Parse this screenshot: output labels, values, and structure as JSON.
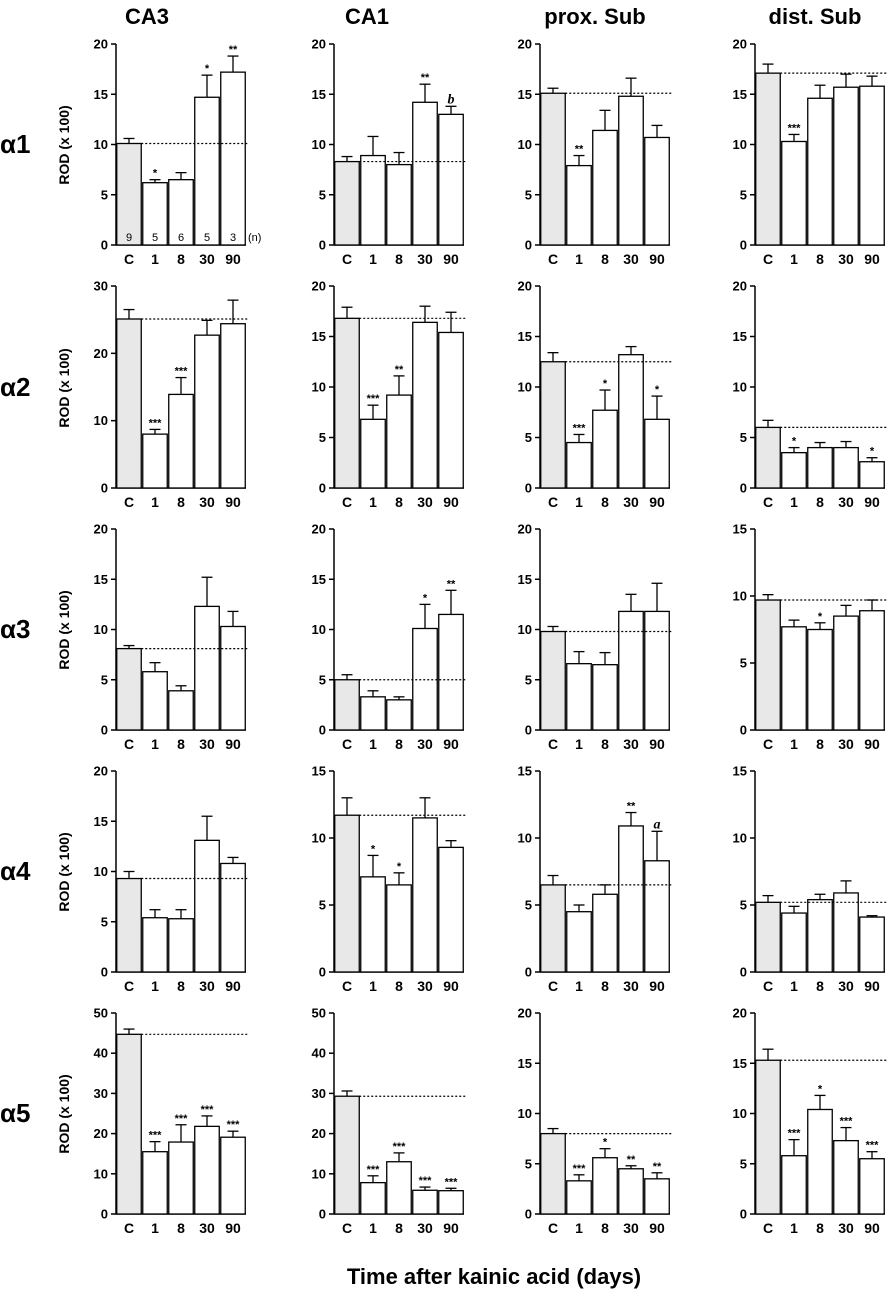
{
  "column_titles": [
    "CA3",
    "CA1",
    "prox. Sub",
    "dist. Sub"
  ],
  "row_titles": [
    "α1",
    "α2",
    "α3",
    "α4",
    "α5"
  ],
  "y_axis_label": "ROD (x 100)",
  "x_axis_label": "Time after kainic acid (days)",
  "n_label": "(n)",
  "colors": {
    "control_fill": "#e8e8e8",
    "treatment_fill": "#ffffff",
    "stroke": "#000000"
  },
  "chart_data": [
    {
      "type": "bar",
      "row": "α1",
      "column": "CA3",
      "categories": [
        "C",
        "1",
        "8",
        "30",
        "90"
      ],
      "values": [
        10.1,
        6.2,
        6.5,
        14.7,
        17.2
      ],
      "errors": [
        0.5,
        0.3,
        0.7,
        2.2,
        1.6
      ],
      "significance": [
        "",
        "*",
        "",
        "*",
        "**"
      ],
      "n": [
        "9",
        "5",
        "6",
        "5",
        "3"
      ],
      "ylim": [
        0,
        20
      ],
      "yticks": [
        0,
        5,
        10,
        15,
        20
      ],
      "baseline": 10.1
    },
    {
      "type": "bar",
      "row": "α1",
      "column": "CA1",
      "categories": [
        "C",
        "1",
        "8",
        "30",
        "90"
      ],
      "values": [
        8.3,
        8.9,
        8.0,
        14.2,
        13.0
      ],
      "errors": [
        0.5,
        1.9,
        1.2,
        1.8,
        0.8
      ],
      "significance": [
        "",
        "",
        "",
        "**",
        "b"
      ],
      "ylim": [
        0,
        20
      ],
      "yticks": [
        0,
        5,
        10,
        15,
        20
      ],
      "baseline": 8.3
    },
    {
      "type": "bar",
      "row": "α1",
      "column": "prox. Sub",
      "categories": [
        "C",
        "1",
        "8",
        "30",
        "90"
      ],
      "values": [
        15.1,
        7.9,
        11.4,
        14.8,
        10.7
      ],
      "errors": [
        0.5,
        1.0,
        2.0,
        1.8,
        1.2
      ],
      "significance": [
        "",
        "**",
        "",
        "",
        ""
      ],
      "ylim": [
        0,
        20
      ],
      "yticks": [
        0,
        5,
        10,
        15,
        20
      ],
      "baseline": 15.1
    },
    {
      "type": "bar",
      "row": "α1",
      "column": "dist. Sub",
      "categories": [
        "C",
        "1",
        "8",
        "30",
        "90"
      ],
      "values": [
        17.1,
        10.3,
        14.6,
        15.7,
        15.8
      ],
      "errors": [
        0.9,
        0.7,
        1.3,
        1.3,
        1.0
      ],
      "significance": [
        "",
        "***",
        "",
        "",
        ""
      ],
      "ylim": [
        0,
        20
      ],
      "yticks": [
        0,
        5,
        10,
        15,
        20
      ],
      "baseline": 17.1
    },
    {
      "type": "bar",
      "row": "α2",
      "column": "CA3",
      "categories": [
        "C",
        "1",
        "8",
        "30",
        "90"
      ],
      "values": [
        25.1,
        8.0,
        13.9,
        22.7,
        24.4
      ],
      "errors": [
        1.4,
        0.7,
        2.5,
        2.2,
        3.5
      ],
      "significance": [
        "",
        "***",
        "***",
        "",
        ""
      ],
      "ylim": [
        0,
        30
      ],
      "yticks": [
        0,
        10,
        20,
        30
      ],
      "baseline": 25.1
    },
    {
      "type": "bar",
      "row": "α2",
      "column": "CA1",
      "categories": [
        "C",
        "1",
        "8",
        "30",
        "90"
      ],
      "values": [
        16.8,
        6.8,
        9.2,
        16.4,
        15.4
      ],
      "errors": [
        1.1,
        1.4,
        1.9,
        1.6,
        2.0
      ],
      "significance": [
        "",
        "***",
        "**",
        "",
        ""
      ],
      "ylim": [
        0,
        20
      ],
      "yticks": [
        0,
        5,
        10,
        15,
        20
      ],
      "baseline": 16.8
    },
    {
      "type": "bar",
      "row": "α2",
      "column": "prox. Sub",
      "categories": [
        "C",
        "1",
        "8",
        "30",
        "90"
      ],
      "values": [
        12.5,
        4.5,
        7.7,
        13.2,
        6.8
      ],
      "errors": [
        0.9,
        0.8,
        2.0,
        0.8,
        2.3
      ],
      "significance": [
        "",
        "***",
        "*",
        "",
        "*"
      ],
      "ylim": [
        0,
        20
      ],
      "yticks": [
        0,
        5,
        10,
        15,
        20
      ],
      "baseline": 12.5
    },
    {
      "type": "bar",
      "row": "α2",
      "column": "dist. Sub",
      "categories": [
        "C",
        "1",
        "8",
        "30",
        "90"
      ],
      "values": [
        6.0,
        3.5,
        4.0,
        4.0,
        2.6
      ],
      "errors": [
        0.7,
        0.5,
        0.5,
        0.6,
        0.4
      ],
      "significance": [
        "",
        "*",
        "",
        "",
        "*"
      ],
      "ylim": [
        0,
        20
      ],
      "yticks": [
        0,
        5,
        10,
        15,
        20
      ],
      "baseline": 6.0
    },
    {
      "type": "bar",
      "row": "α3",
      "column": "CA3",
      "categories": [
        "C",
        "1",
        "8",
        "30",
        "90"
      ],
      "values": [
        8.1,
        5.8,
        3.9,
        12.3,
        10.3
      ],
      "errors": [
        0.3,
        0.9,
        0.5,
        2.9,
        1.5
      ],
      "significance": [
        "",
        "",
        "",
        "",
        ""
      ],
      "ylim": [
        0,
        20
      ],
      "yticks": [
        0,
        5,
        10,
        15,
        20
      ],
      "baseline": 8.1
    },
    {
      "type": "bar",
      "row": "α3",
      "column": "CA1",
      "categories": [
        "C",
        "1",
        "8",
        "30",
        "90"
      ],
      "values": [
        5.0,
        3.3,
        3.0,
        10.1,
        11.5
      ],
      "errors": [
        0.5,
        0.6,
        0.3,
        2.4,
        2.4
      ],
      "significance": [
        "",
        "",
        "",
        "*",
        "**"
      ],
      "ylim": [
        0,
        20
      ],
      "yticks": [
        0,
        5,
        10,
        15,
        20
      ],
      "baseline": 5.0
    },
    {
      "type": "bar",
      "row": "α3",
      "column": "prox. Sub",
      "categories": [
        "C",
        "1",
        "8",
        "30",
        "90"
      ],
      "values": [
        9.8,
        6.6,
        6.5,
        11.8,
        11.8
      ],
      "errors": [
        0.5,
        1.2,
        1.2,
        1.7,
        2.8
      ],
      "significance": [
        "",
        "",
        "",
        "",
        ""
      ],
      "ylim": [
        0,
        20
      ],
      "yticks": [
        0,
        5,
        10,
        15,
        20
      ],
      "baseline": 9.8
    },
    {
      "type": "bar",
      "row": "α3",
      "column": "dist. Sub",
      "categories": [
        "C",
        "1",
        "8",
        "30",
        "90"
      ],
      "values": [
        9.7,
        7.7,
        7.5,
        8.5,
        8.9
      ],
      "errors": [
        0.4,
        0.5,
        0.5,
        0.8,
        0.8
      ],
      "significance": [
        "",
        "",
        "*",
        "",
        ""
      ],
      "ylim": [
        0,
        15
      ],
      "yticks": [
        0,
        5,
        10,
        15
      ],
      "baseline": 9.7
    },
    {
      "type": "bar",
      "row": "α4",
      "column": "CA3",
      "categories": [
        "C",
        "1",
        "8",
        "30",
        "90"
      ],
      "values": [
        9.3,
        5.4,
        5.3,
        13.1,
        10.8
      ],
      "errors": [
        0.7,
        0.8,
        0.9,
        2.4,
        0.6
      ],
      "significance": [
        "",
        "",
        "",
        "",
        ""
      ],
      "ylim": [
        0,
        20
      ],
      "yticks": [
        0,
        5,
        10,
        15,
        20
      ],
      "baseline": 9.3
    },
    {
      "type": "bar",
      "row": "α4",
      "column": "CA1",
      "categories": [
        "C",
        "1",
        "8",
        "30",
        "90"
      ],
      "values": [
        11.7,
        7.1,
        6.5,
        11.5,
        9.3
      ],
      "errors": [
        1.3,
        1.6,
        0.9,
        1.5,
        0.5
      ],
      "significance": [
        "",
        "*",
        "*",
        "",
        ""
      ],
      "ylim": [
        0,
        15
      ],
      "yticks": [
        0,
        5,
        10,
        15
      ],
      "baseline": 11.7
    },
    {
      "type": "bar",
      "row": "α4",
      "column": "prox. Sub",
      "categories": [
        "C",
        "1",
        "8",
        "30",
        "90"
      ],
      "values": [
        6.5,
        4.5,
        5.8,
        10.9,
        8.3
      ],
      "errors": [
        0.7,
        0.5,
        0.7,
        1.0,
        2.2
      ],
      "significance": [
        "",
        "",
        "",
        "**",
        "a"
      ],
      "ylim": [
        0,
        15
      ],
      "yticks": [
        0,
        5,
        10,
        15
      ],
      "baseline": 6.5
    },
    {
      "type": "bar",
      "row": "α4",
      "column": "dist. Sub",
      "categories": [
        "C",
        "1",
        "8",
        "30",
        "90"
      ],
      "values": [
        5.2,
        4.4,
        5.4,
        5.9,
        4.1
      ],
      "errors": [
        0.5,
        0.5,
        0.4,
        0.9,
        0.1
      ],
      "significance": [
        "",
        "",
        "",
        "",
        ""
      ],
      "ylim": [
        0,
        15
      ],
      "yticks": [
        0,
        5,
        10,
        15
      ],
      "baseline": 5.2
    },
    {
      "type": "bar",
      "row": "α5",
      "column": "CA3",
      "categories": [
        "C",
        "1",
        "8",
        "30",
        "90"
      ],
      "values": [
        44.7,
        15.5,
        17.9,
        21.8,
        19.1
      ],
      "errors": [
        1.3,
        2.5,
        4.3,
        2.6,
        1.5
      ],
      "significance": [
        "",
        "***",
        "***",
        "***",
        "***"
      ],
      "ylim": [
        0,
        50
      ],
      "yticks": [
        0,
        10,
        20,
        30,
        40,
        50
      ],
      "baseline": 44.7
    },
    {
      "type": "bar",
      "row": "α5",
      "column": "CA1",
      "categories": [
        "C",
        "1",
        "8",
        "30",
        "90"
      ],
      "values": [
        29.3,
        7.8,
        13.0,
        5.9,
        5.8
      ],
      "errors": [
        1.3,
        1.7,
        2.2,
        0.8,
        0.6
      ],
      "significance": [
        "",
        "***",
        "***",
        "***",
        "***"
      ],
      "ylim": [
        0,
        50
      ],
      "yticks": [
        0,
        10,
        20,
        30,
        40,
        50
      ],
      "baseline": 29.3
    },
    {
      "type": "bar",
      "row": "α5",
      "column": "prox. Sub",
      "categories": [
        "C",
        "1",
        "8",
        "30",
        "90"
      ],
      "values": [
        8.0,
        3.3,
        5.6,
        4.5,
        3.5
      ],
      "errors": [
        0.5,
        0.6,
        0.9,
        0.3,
        0.6
      ],
      "significance": [
        "",
        "***",
        "*",
        "**",
        "**"
      ],
      "ylim": [
        0,
        20
      ],
      "yticks": [
        0,
        5,
        10,
        15,
        20
      ],
      "baseline": 8.0
    },
    {
      "type": "bar",
      "row": "α5",
      "column": "dist. Sub",
      "categories": [
        "C",
        "1",
        "8",
        "30",
        "90"
      ],
      "values": [
        15.3,
        5.8,
        10.4,
        7.3,
        5.5
      ],
      "errors": [
        1.1,
        1.6,
        1.4,
        1.3,
        0.7
      ],
      "significance": [
        "",
        "***",
        "*",
        "***",
        "***"
      ],
      "ylim": [
        0,
        20
      ],
      "yticks": [
        0,
        5,
        10,
        15,
        20
      ],
      "baseline": 15.3
    }
  ]
}
